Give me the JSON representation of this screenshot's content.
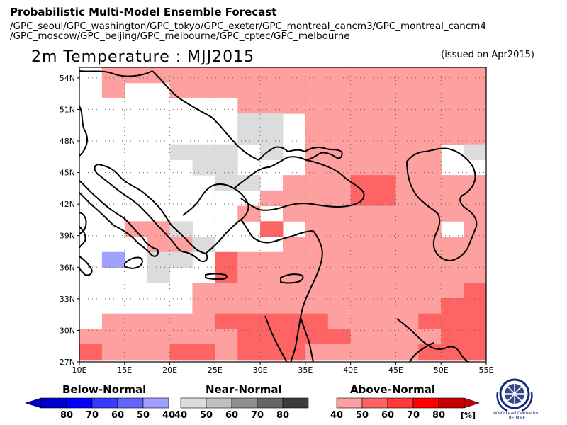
{
  "header": {
    "main_title": "Probabilistic Multi-Model Ensemble Forecast",
    "models_line1": "/GPC_seoul/GPC_washington/GPC_tokyo/GPC_exeter/GPC_montreal_cancm3/GPC_montreal_cancm4",
    "models_line2": "/GPC_moscow/GPC_beijing/GPC_melbourne/GPC_cptec/GPC_melbourne"
  },
  "map": {
    "title": "2m Temperature : MJJ2015",
    "issued": "(issued on Apr2015)",
    "lon_ticks": [
      "10E",
      "15E",
      "20E",
      "25E",
      "30E",
      "35E",
      "40E",
      "45E",
      "50E",
      "55E"
    ],
    "lat_ticks": [
      "54N",
      "51N",
      "48N",
      "45N",
      "42N",
      "39N",
      "36N",
      "33N",
      "30N",
      "27N"
    ],
    "colors": {
      "above_40": "#ffa0a0",
      "above_50": "#ff6464",
      "above_60": "#ff3a3a",
      "above_70": "#ff0000",
      "near_40": "#dcdcdc",
      "below_40": "#a0a0ff",
      "coast": "#000000"
    }
  },
  "legend": {
    "below": {
      "label": "Below-Normal",
      "ticks": [
        "80",
        "70",
        "60",
        "50",
        "40"
      ],
      "colors": [
        "#0000cd",
        "#0000ff",
        "#3a3aff",
        "#6464ff",
        "#a0a0ff"
      ]
    },
    "near": {
      "label": "Near-Normal",
      "ticks": [
        "40",
        "50",
        "60",
        "70",
        "80"
      ],
      "colors": [
        "#dcdcdc",
        "#c0c0c0",
        "#909090",
        "#666666",
        "#3c3c3c"
      ]
    },
    "above": {
      "label": "Above-Normal",
      "ticks": [
        "40",
        "50",
        "60",
        "70",
        "80"
      ],
      "unit": "[%]",
      "colors": [
        "#ffa0a0",
        "#ff6464",
        "#ff3a3a",
        "#ff0000",
        "#c80000"
      ]
    }
  },
  "logo": {
    "line1": "WMO Lead Centre for",
    "line2": "LRF MME"
  }
}
